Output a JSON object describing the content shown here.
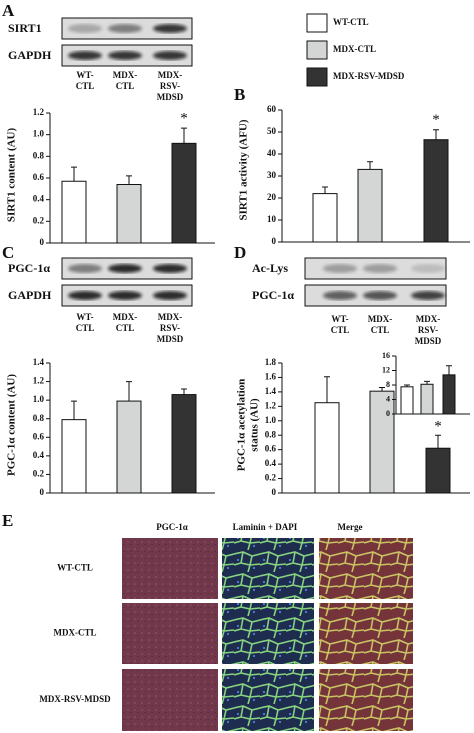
{
  "panels": [
    "A",
    "B",
    "C",
    "D",
    "E"
  ],
  "legend": {
    "items": [
      {
        "name": "WT-CTL",
        "color": "#ffffff"
      },
      {
        "name": "MDX-CTL",
        "color": "#d4d6d6"
      },
      {
        "name": "MDX-RSV-MDSD",
        "color": "#333333"
      }
    ]
  },
  "blots": [
    {
      "rows": [
        "SIRT1",
        "GAPDH"
      ],
      "lanes": [
        [
          "WT-",
          "CTL"
        ],
        [
          "MDX-",
          "CTL"
        ],
        [
          "MDX-",
          "RSV-",
          "MDSD"
        ]
      ]
    },
    {
      "rows": [
        "PGC-1α",
        "GAPDH"
      ],
      "lanes": [
        [
          "WT-",
          "CTL"
        ],
        [
          "MDX-",
          "CTL"
        ],
        [
          "MDX-",
          "RSV-",
          "MDSD"
        ]
      ]
    },
    {
      "rows": [
        "Ac-Lys",
        "PGC-1α"
      ],
      "lanes": [
        [
          "WT-",
          "CTL"
        ],
        [
          "MDX-",
          "CTL"
        ],
        [
          "MDX-",
          "RSV-",
          "MDSD"
        ]
      ]
    }
  ],
  "chart_data": [
    {
      "type": "bar",
      "ylabel": [
        "SIRT1 content (AU)"
      ],
      "values": [
        0.57,
        0.54,
        0.92
      ],
      "errors": [
        0.13,
        0.08,
        0.14
      ],
      "annotations": [
        null,
        null,
        "*"
      ],
      "ylim": [
        0,
        1.2
      ],
      "yticks": [
        0,
        0.2,
        0.4,
        0.6,
        0.8,
        {
          "value": 1,
          "label": "1.0"
        },
        1.2
      ]
    },
    {
      "type": "bar",
      "ylabel": [
        "SIRT1 activity (AFU)"
      ],
      "values": [
        22,
        33,
        46.5
      ],
      "errors": [
        3,
        3.5,
        4.5
      ],
      "annotations": [
        null,
        null,
        "*"
      ],
      "ylim": [
        0,
        60
      ],
      "yticks": [
        0,
        10,
        20,
        30,
        40,
        50,
        60
      ]
    },
    {
      "type": "bar",
      "ylabel": [
        "PGC-1α content (AU)"
      ],
      "values": [
        0.79,
        0.99,
        1.06
      ],
      "errors": [
        0.2,
        0.21,
        0.06
      ],
      "ylim": [
        0,
        1.4
      ],
      "yticks": [
        0,
        0.2,
        0.4,
        0.6,
        0.8,
        {
          "value": 1,
          "label": "1.0"
        },
        1.2,
        1.4
      ]
    },
    {
      "type": "bar",
      "ylabel": [
        "PGC-1α acetylation",
        "status (AU)"
      ],
      "values": [
        1.25,
        1.41,
        0.62
      ],
      "errors": [
        0.36,
        0.05,
        0.18
      ],
      "annotations": [
        null,
        null,
        "*"
      ],
      "ylim": [
        0,
        1.8
      ],
      "yticks": [
        0,
        0.2,
        0.4,
        0.6,
        0.8,
        {
          "value": 1,
          "label": "1.0"
        },
        1.2,
        1.4,
        1.6,
        1.8
      ]
    },
    {
      "type": "bar",
      "values": [
        7.5,
        8.2,
        10.8
      ],
      "errors": [
        0.5,
        0.8,
        2.5
      ],
      "ylim": [
        0,
        16
      ],
      "yticks": [
        0,
        4,
        8,
        12,
        16
      ]
    }
  ],
  "micrographs": {
    "columns": [
      "PGC-1α",
      "Laminin + DAPI",
      "Merge"
    ],
    "rows": [
      "WT-CTL",
      "MDX-CTL",
      "MDX-RSV-MDSD"
    ]
  }
}
